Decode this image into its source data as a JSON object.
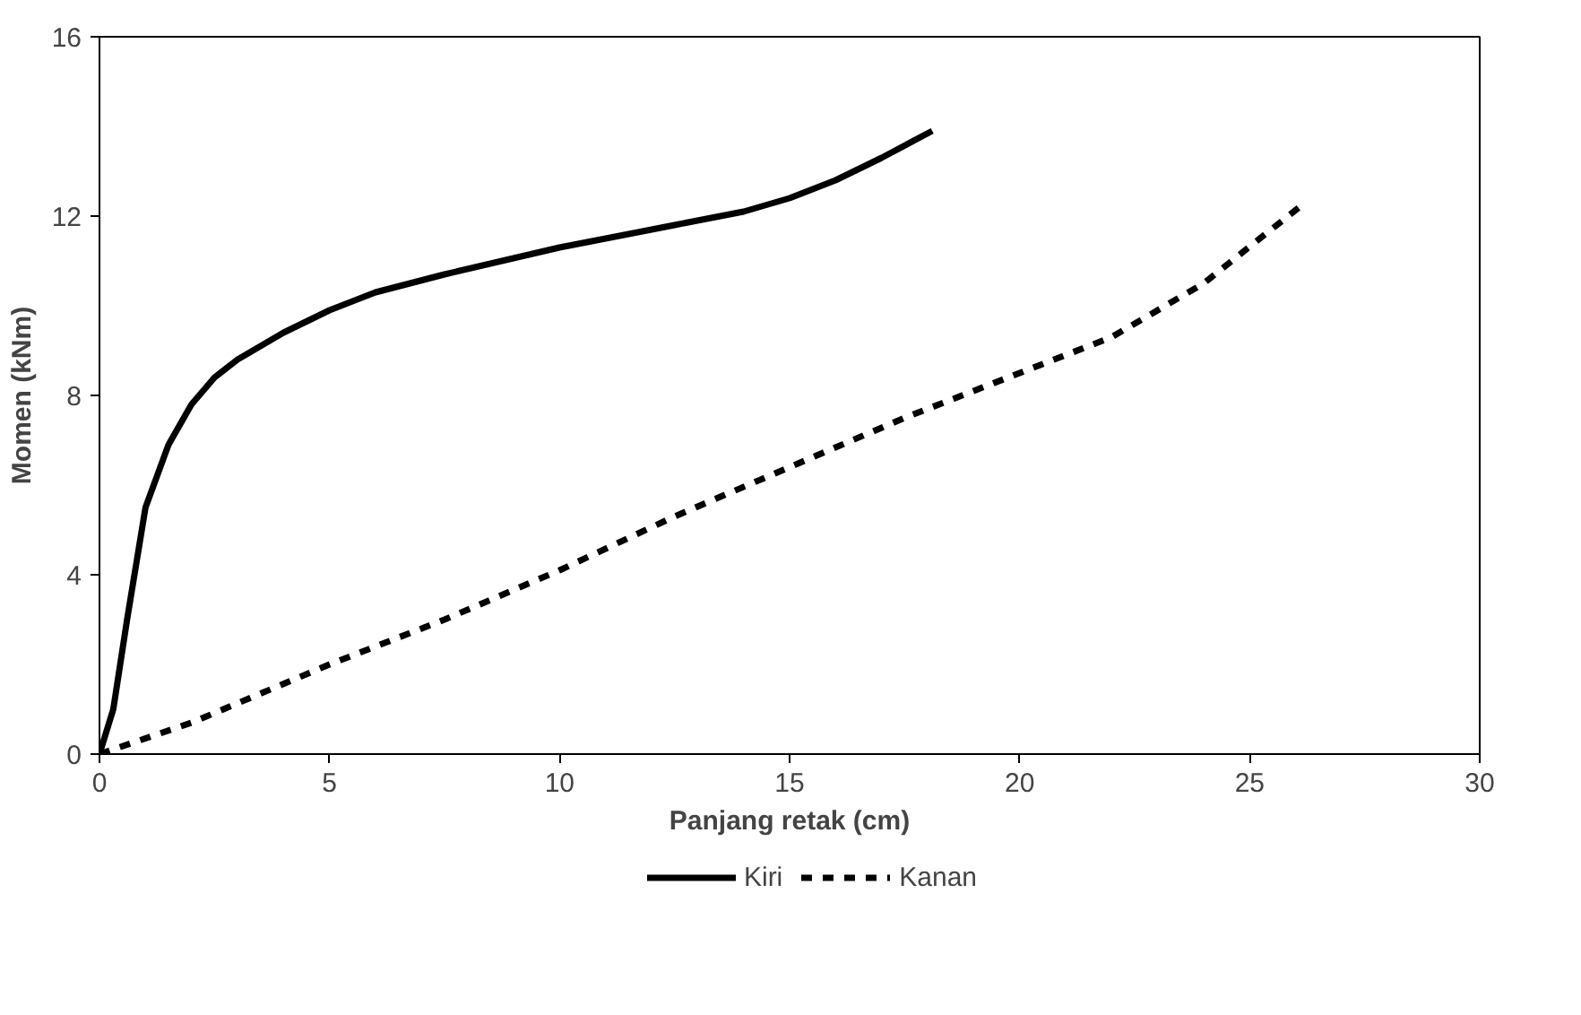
{
  "chart_data": {
    "type": "line",
    "xlabel": "Panjang retak (cm)",
    "ylabel": "Momen (kNm)",
    "xlim": [
      0,
      30
    ],
    "ylim": [
      0,
      16
    ],
    "xticks": [
      0,
      5,
      10,
      15,
      20,
      25,
      30
    ],
    "yticks": [
      0,
      4,
      8,
      12,
      16
    ],
    "grid": false,
    "legend": "bottom",
    "marker": "none",
    "series": [
      {
        "name": "Kiri",
        "color": "#000000",
        "line_style": "solid",
        "x": [
          0,
          0.3,
          0.6,
          1,
          1.5,
          2,
          2.5,
          3,
          4,
          5,
          6,
          7.5,
          10,
          12.5,
          14,
          15,
          16,
          17,
          18.1
        ],
        "values": [
          0,
          1,
          3,
          5.5,
          6.9,
          7.8,
          8.4,
          8.8,
          9.4,
          9.9,
          10.3,
          10.7,
          11.3,
          11.8,
          12.1,
          12.4,
          12.8,
          13.3,
          13.9
        ]
      },
      {
        "name": "Kanan",
        "color": "#000000",
        "line_style": "dashed",
        "x": [
          0,
          2,
          5,
          7.5,
          10,
          12.5,
          15,
          17.5,
          20,
          22,
          24,
          26.2
        ],
        "values": [
          0,
          0.7,
          2,
          3,
          4.1,
          5.3,
          6.4,
          7.5,
          8.5,
          9.3,
          10.5,
          12.3
        ]
      }
    ]
  }
}
